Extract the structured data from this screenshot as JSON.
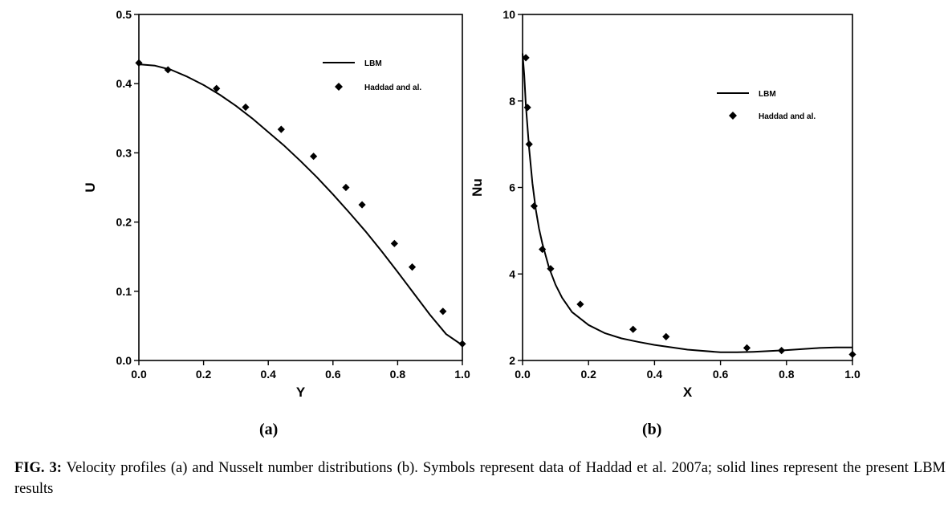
{
  "chart_data": [
    {
      "type": "line",
      "panel_label": "(a)",
      "xlabel": "Y",
      "ylabel": "U",
      "xlim": [
        0.0,
        1.0
      ],
      "ylim": [
        0.0,
        0.5
      ],
      "xticks": [
        "0.0",
        "0.2",
        "0.4",
        "0.6",
        "0.8",
        "1.0"
      ],
      "yticks": [
        "0.0",
        "0.1",
        "0.2",
        "0.3",
        "0.4",
        "0.5"
      ],
      "grid": false,
      "legend_position": "top-right",
      "series": [
        {
          "name": "LBM",
          "style": "line",
          "x": [
            0.0,
            0.05,
            0.1,
            0.15,
            0.2,
            0.25,
            0.3,
            0.35,
            0.4,
            0.45,
            0.5,
            0.55,
            0.6,
            0.65,
            0.7,
            0.75,
            0.8,
            0.85,
            0.9,
            0.95,
            1.0
          ],
          "y": [
            0.428,
            0.426,
            0.42,
            0.41,
            0.398,
            0.384,
            0.368,
            0.35,
            0.33,
            0.31,
            0.288,
            0.265,
            0.24,
            0.214,
            0.187,
            0.158,
            0.128,
            0.097,
            0.066,
            0.038,
            0.022
          ]
        },
        {
          "name": "Haddad and al.",
          "style": "marker",
          "x": [
            0.0,
            0.09,
            0.24,
            0.33,
            0.44,
            0.54,
            0.64,
            0.69,
            0.79,
            0.845,
            0.94,
            1.0
          ],
          "y": [
            0.43,
            0.42,
            0.393,
            0.366,
            0.334,
            0.295,
            0.25,
            0.225,
            0.169,
            0.135,
            0.071,
            0.024
          ]
        }
      ]
    },
    {
      "type": "line",
      "panel_label": "(b)",
      "xlabel": "X",
      "ylabel": "Nu",
      "xlim": [
        0.0,
        1.0
      ],
      "ylim": [
        2,
        10
      ],
      "xticks": [
        "0.0",
        "0.2",
        "0.4",
        "0.6",
        "0.8",
        "1.0"
      ],
      "yticks": [
        "2",
        "4",
        "6",
        "8",
        "10"
      ],
      "grid": false,
      "legend_position": "top-right",
      "series": [
        {
          "name": "LBM",
          "style": "line",
          "x": [
            0.0,
            0.005,
            0.01,
            0.02,
            0.03,
            0.04,
            0.05,
            0.06,
            0.08,
            0.1,
            0.12,
            0.15,
            0.2,
            0.25,
            0.3,
            0.35,
            0.4,
            0.5,
            0.6,
            0.65,
            0.7,
            0.8,
            0.9,
            0.95,
            1.0
          ],
          "y": [
            9.1,
            8.6,
            7.9,
            6.9,
            6.1,
            5.5,
            5.05,
            4.7,
            4.15,
            3.75,
            3.45,
            3.12,
            2.82,
            2.63,
            2.51,
            2.43,
            2.36,
            2.25,
            2.19,
            2.19,
            2.2,
            2.24,
            2.29,
            2.3,
            2.3
          ]
        },
        {
          "name": "Haddad and al.",
          "style": "marker",
          "x": [
            0.01,
            0.015,
            0.02,
            0.035,
            0.06,
            0.085,
            0.175,
            0.335,
            0.435,
            0.68,
            0.785,
            1.0
          ],
          "y": [
            9.0,
            7.85,
            7.0,
            5.57,
            4.57,
            4.12,
            3.3,
            2.72,
            2.55,
            2.29,
            2.23,
            2.14
          ]
        }
      ]
    }
  ],
  "caption": {
    "label": "FIG. 3:",
    "text": " Velocity profiles (a) and Nusselt number distributions (b). Symbols represent data of Haddad et al. 2007a; solid lines represent the present LBM results"
  }
}
